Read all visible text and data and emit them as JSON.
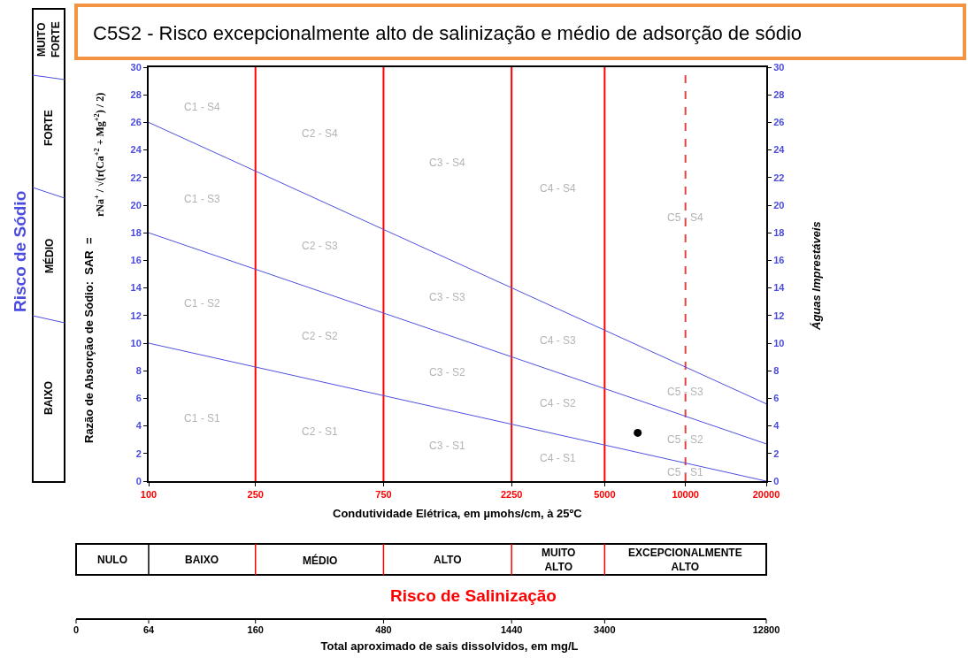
{
  "chart_data": [
    {
      "type": "line",
      "title": "C5S2 - Risco excepcionalmente alto de salinização e médio de adsorção de sódio",
      "xlabel": "Condutividade Elétrica, em µmohs/cm, à 25ºC",
      "ylabel": "Razão de Absorção de Sódio:  SAR  =",
      "y2label": "Águas Imprestáveis",
      "log": "x",
      "grid": false,
      "line_style": "solid",
      "xlim": [
        100,
        20000
      ],
      "xticks": [
        100,
        250,
        750,
        2250,
        5000,
        10000,
        20000
      ],
      "ylim": [
        0,
        30
      ],
      "yticks": [
        0,
        2,
        4,
        6,
        8,
        10,
        12,
        14,
        16,
        18,
        20,
        22,
        24,
        26,
        28,
        30
      ],
      "y2lim": [
        0,
        30
      ],
      "y2ticks": [
        0,
        2,
        4,
        6,
        8,
        10,
        12,
        14,
        16,
        18,
        20,
        22,
        24,
        26,
        28,
        30
      ],
      "series": [
        {
          "color": "#5050e0",
          "x": [
            100,
            20000
          ],
          "values": [
            26,
            5.6
          ]
        },
        {
          "color": "#5050e0",
          "x": [
            100,
            20000
          ],
          "values": [
            18,
            2.7
          ]
        },
        {
          "color": "#5050e0",
          "x": [
            100,
            20000
          ],
          "values": [
            10,
            0
          ]
        },
        {
          "type": "scatter",
          "marker": "circle",
          "color": "#000000",
          "x": [
            6640
          ],
          "values": [
            3.5
          ]
        }
      ],
      "ref_lines": [
        {
          "axis": "x",
          "value": 250,
          "color": "#ff0000",
          "line_style": "solid"
        },
        {
          "axis": "x",
          "value": 750,
          "color": "#ff0000",
          "line_style": "solid"
        },
        {
          "axis": "x",
          "value": 2250,
          "color": "#ff0000",
          "line_style": "solid"
        },
        {
          "axis": "x",
          "value": 5000,
          "color": "#ff0000",
          "line_style": "solid"
        },
        {
          "axis": "x",
          "value": 10000,
          "color": "#dd4444",
          "line_style": "dashed"
        }
      ],
      "annotations": [
        "C1 - S1",
        "C1 - S2",
        "C1 - S3",
        "C1 - S4",
        "C2 - S1",
        "C2 - S2",
        "C2 - S3",
        "C2 - S4",
        "C3 - S1",
        "C3 - S2",
        "C3 - S3",
        "C3 - S4",
        "C4 - S1",
        "C4 - S2",
        "C4 - S3",
        "C4 - S4",
        "C5 - S1",
        "C5 - S2",
        "C5 - S3",
        "C5 - S4",
        "Risco de Sódio",
        "BAIXO",
        "MÉDIO",
        "FORTE",
        "MUITO FORTE",
        "rNa$^{+}$ / √(r(Ca$^{+2}$ + Mg$^{+2}$) / 2)",
        "NULO",
        "BAIXO",
        "MÉDIO",
        "ALTO",
        "MUITO ALTO",
        "EXCEPCIONALMENTE ALTO",
        "Risco de Salinização"
      ]
    },
    {
      "type": "other",
      "xlabel": "Total aproximado de sais dissolvidos, em mg/L",
      "annotations": [
        "0",
        "64",
        "160",
        "480",
        "1440",
        "3400",
        "12800"
      ]
    }
  ]
}
